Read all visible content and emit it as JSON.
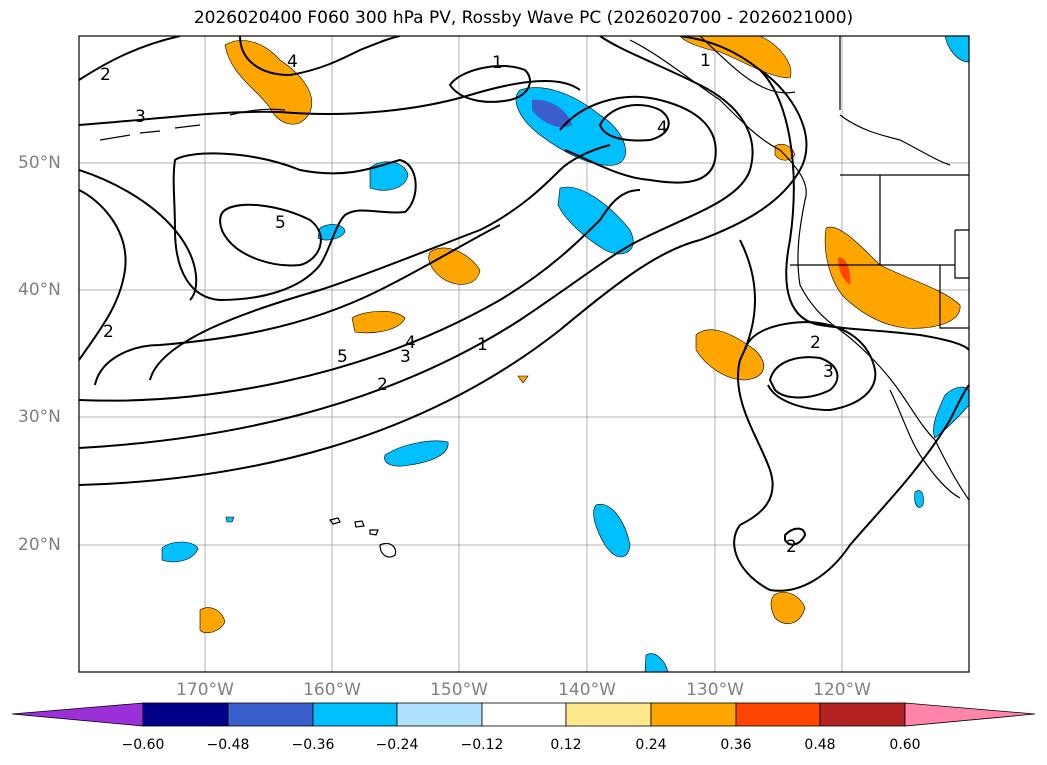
{
  "title": "2026020400 F060 300 hPa PV, Rossby Wave PC (2026020700 - 2026021000)",
  "map": {
    "region": "North Pacific",
    "lat_labels": [
      "50°N",
      "40°N",
      "30°N",
      "20°N"
    ],
    "lon_labels": [
      "170°W",
      "160°W",
      "150°W",
      "140°W",
      "130°W",
      "120°W"
    ],
    "contour_labels": [
      "1",
      "2",
      "3",
      "4",
      "5"
    ]
  },
  "colorbar": {
    "ticks": [
      "−0.60",
      "−0.48",
      "−0.36",
      "−0.24",
      "−0.12",
      "0.12",
      "0.24",
      "0.36",
      "0.48",
      "0.60"
    ],
    "colors": [
      "#9b30d9",
      "#00008b",
      "#3a5fcd",
      "#00bfff",
      "#b0e2ff",
      "#ffffff",
      "#fde98b",
      "#ffa500",
      "#ff4500",
      "#b22222",
      "#ff85a9"
    ]
  }
}
